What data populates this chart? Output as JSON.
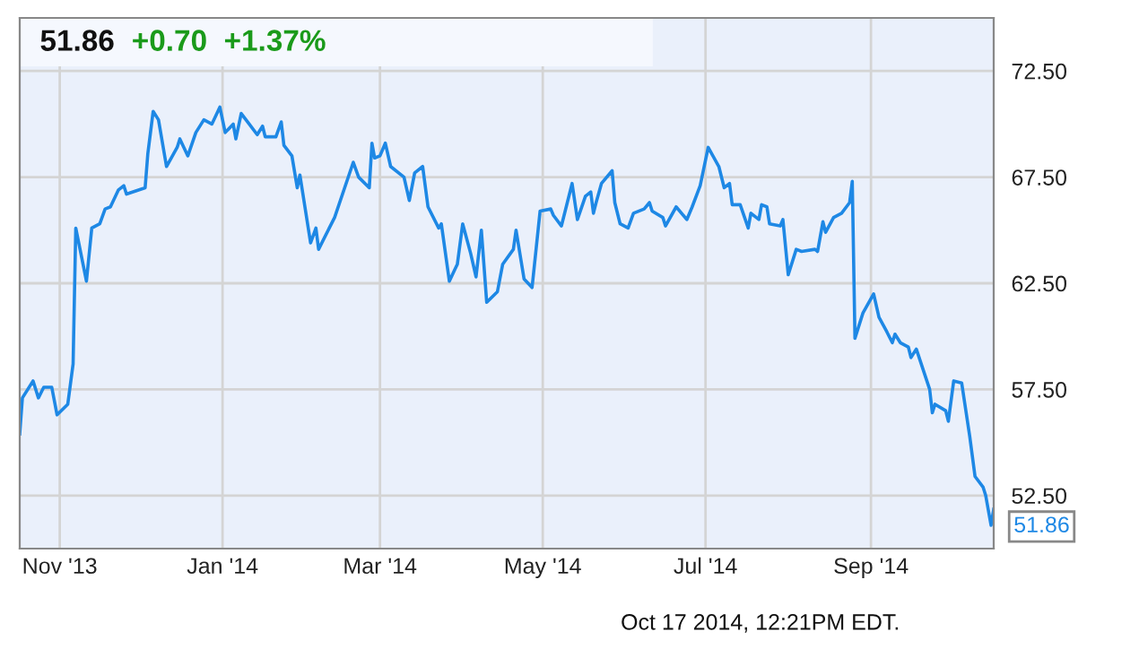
{
  "chart_data": {
    "type": "line",
    "annotations": [
      "51.86",
      "+0.70",
      "+1.37%",
      "Oct 17 2014, 12:21PM EDT.",
      {
        "text": "51.86",
        "x": "2014-10-17",
        "y": 51.86
      }
    ],
    "series": [
      {
        "color": "#1e88e5",
        "x": [
          "2013-10-17",
          "2013-10-18",
          "2013-10-22",
          "2013-10-24",
          "2013-10-26",
          "2013-10-29",
          "2013-10-31",
          "2013-11-04",
          "2013-11-06",
          "2013-11-07",
          "2013-11-11",
          "2013-11-13",
          "2013-11-16",
          "2013-11-18",
          "2013-11-20",
          "2013-11-23",
          "2013-11-25",
          "2013-11-26",
          "2013-12-03",
          "2013-12-04",
          "2013-12-06",
          "2013-12-08",
          "2013-12-11",
          "2013-12-15",
          "2013-12-16",
          "2013-12-19",
          "2013-12-22",
          "2013-12-25",
          "2013-12-28",
          "2013-12-31",
          "2014-01-02",
          "2014-01-05",
          "2014-01-06",
          "2014-01-08",
          "2014-01-11",
          "2014-01-14",
          "2014-01-16",
          "2014-01-17",
          "2014-01-21",
          "2014-01-23",
          "2014-01-24",
          "2014-01-27",
          "2014-01-29",
          "2014-01-30",
          "2014-02-03",
          "2014-02-05",
          "2014-02-06",
          "2014-02-10",
          "2014-02-12",
          "2014-02-19",
          "2014-02-21",
          "2014-02-25",
          "2014-02-26",
          "2014-02-27",
          "2014-03-01",
          "2014-03-03",
          "2014-03-05",
          "2014-03-10",
          "2014-03-12",
          "2014-03-14",
          "2014-03-17",
          "2014-03-19",
          "2014-03-23",
          "2014-03-24",
          "2014-03-27",
          "2014-03-30",
          "2014-04-01",
          "2014-04-04",
          "2014-04-06",
          "2014-04-08",
          "2014-04-10",
          "2014-04-14",
          "2014-04-16",
          "2014-04-20",
          "2014-04-21",
          "2014-04-24",
          "2014-04-27",
          "2014-04-30",
          "2014-05-04",
          "2014-05-05",
          "2014-05-08",
          "2014-05-12",
          "2014-05-14",
          "2014-05-17",
          "2014-05-19",
          "2014-05-20",
          "2014-05-21",
          "2014-05-23",
          "2014-05-27",
          "2014-05-28",
          "2014-05-30",
          "2014-06-02",
          "2014-06-04",
          "2014-06-08",
          "2014-06-10",
          "2014-06-11",
          "2014-06-15",
          "2014-06-16",
          "2014-06-20",
          "2014-06-24",
          "2014-06-26",
          "2014-06-29",
          "2014-07-02",
          "2014-07-06",
          "2014-07-08",
          "2014-07-10",
          "2014-07-11",
          "2014-07-14",
          "2014-07-17",
          "2014-07-18",
          "2014-07-21",
          "2014-07-22",
          "2014-07-24",
          "2014-07-25",
          "2014-07-29",
          "2014-07-30",
          "2014-08-01",
          "2014-08-04",
          "2014-08-06",
          "2014-08-11",
          "2014-08-12",
          "2014-08-14",
          "2014-08-15",
          "2014-08-18",
          "2014-08-21",
          "2014-08-24",
          "2014-08-25",
          "2014-08-26",
          "2014-08-29",
          "2014-09-02",
          "2014-09-04",
          "2014-09-07",
          "2014-09-09",
          "2014-09-10",
          "2014-09-12",
          "2014-09-15",
          "2014-09-16",
          "2014-09-18",
          "2014-09-23",
          "2014-09-24",
          "2014-09-25",
          "2014-09-29",
          "2014-09-30",
          "2014-10-02",
          "2014-10-05",
          "2014-10-08",
          "2014-10-10",
          "2014-10-13",
          "2014-10-14",
          "2014-10-16",
          "2014-10-17"
        ],
        "values": [
          55.4,
          57.1,
          57.9,
          57.1,
          57.6,
          57.6,
          56.3,
          56.8,
          58.7,
          65.1,
          62.6,
          65.1,
          65.3,
          66.0,
          66.1,
          66.9,
          67.1,
          66.7,
          67.0,
          68.6,
          70.6,
          70.2,
          68.0,
          68.9,
          69.3,
          68.5,
          69.6,
          70.2,
          70.0,
          70.8,
          69.6,
          70.0,
          69.3,
          70.5,
          70.0,
          69.5,
          69.9,
          69.4,
          69.4,
          70.1,
          69.0,
          68.5,
          67.0,
          67.6,
          64.4,
          65.1,
          64.1,
          65.1,
          65.6,
          68.2,
          67.5,
          67.0,
          69.1,
          68.4,
          68.5,
          69.1,
          68.0,
          67.5,
          66.4,
          67.7,
          68.0,
          66.1,
          65.1,
          65.3,
          62.6,
          63.4,
          65.3,
          63.9,
          62.8,
          65.0,
          61.6,
          62.1,
          63.4,
          64.1,
          65.0,
          62.7,
          62.3,
          65.9,
          66.0,
          65.7,
          65.2,
          67.2,
          65.5,
          66.6,
          66.8,
          65.8,
          66.3,
          67.2,
          67.8,
          66.3,
          65.3,
          65.1,
          65.8,
          66.0,
          66.3,
          65.9,
          65.6,
          65.2,
          66.1,
          65.5,
          66.1,
          67.1,
          68.9,
          68.0,
          67.0,
          67.2,
          66.2,
          66.2,
          65.1,
          65.8,
          65.5,
          66.2,
          66.1,
          65.3,
          65.2,
          65.5,
          62.9,
          64.1,
          64.0,
          64.1,
          64.0,
          65.4,
          64.9,
          65.6,
          65.8,
          66.3,
          67.3,
          59.9,
          61.1,
          62.0,
          60.9,
          60.2,
          59.7,
          60.1,
          59.7,
          59.5,
          59.0,
          59.4,
          57.5,
          56.4,
          56.8,
          56.5,
          56.0,
          57.9,
          57.8,
          55.3,
          53.4,
          52.9,
          52.5,
          51.1,
          51.86
        ]
      }
    ],
    "xlim": [
      "2013-10-17",
      "2014-10-17"
    ],
    "xticks": [
      {
        "value": "2013-11-01",
        "label": "Nov '13"
      },
      {
        "value": "2014-01-01",
        "label": "Jan '14"
      },
      {
        "value": "2014-03-01",
        "label": "Mar '14"
      },
      {
        "value": "2014-05-01",
        "label": "May '14"
      },
      {
        "value": "2014-07-01",
        "label": "Jul '14"
      },
      {
        "value": "2014-09-01",
        "label": "Sep '14"
      }
    ],
    "ylim": [
      50,
      75
    ],
    "yticks": [
      {
        "value": 52.5,
        "label": "52.50"
      },
      {
        "value": 57.5,
        "label": "57.50"
      },
      {
        "value": 62.5,
        "label": "62.50"
      },
      {
        "value": 67.5,
        "label": "67.50"
      },
      {
        "value": 72.5,
        "label": "72.50"
      }
    ],
    "grid": true,
    "marker": "none",
    "line_style": "solid"
  }
}
